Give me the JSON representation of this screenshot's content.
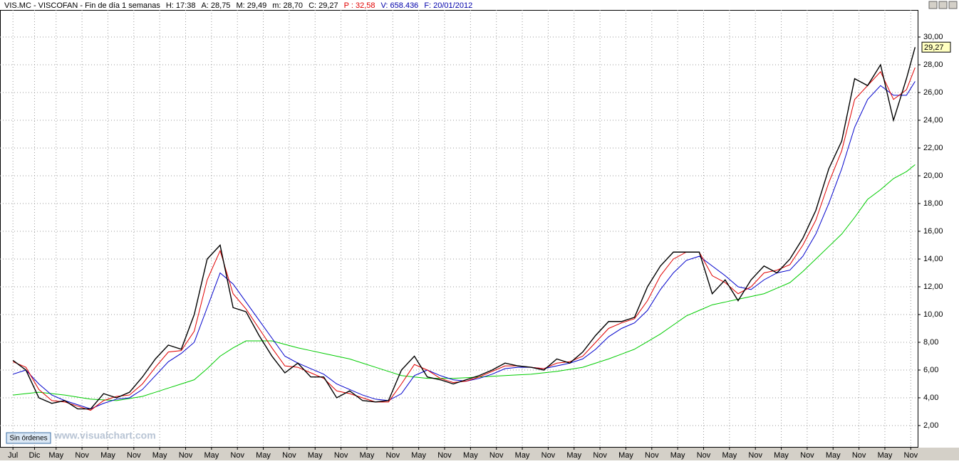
{
  "chart_data": {
    "type": "line",
    "header": [
      "VIS.MC - VISCOFAN - Fin de día 1 semanas",
      "H: 17:38",
      "A: 28,75",
      "M: 29,49",
      "m: 28,70",
      "C: 29,27",
      "P : 32,58",
      "V: 658.436",
      "F: 20/01/2012"
    ],
    "status_button": "Sin órdenes",
    "watermark": "www.visualchart.com",
    "x": [
      0,
      3,
      6,
      9,
      12,
      15,
      18,
      21,
      24,
      27,
      30,
      33,
      36,
      39,
      42,
      45,
      48,
      51,
      54,
      57,
      60,
      63,
      66,
      69,
      72,
      75,
      78,
      81,
      84,
      87,
      90,
      93,
      96,
      99,
      102,
      105,
      108,
      111,
      114,
      117,
      120,
      123,
      126,
      129,
      132,
      135,
      138,
      141,
      144,
      147,
      150,
      153,
      156,
      159,
      162,
      165,
      168,
      171,
      174,
      177,
      180,
      183,
      186,
      189,
      192,
      195,
      198,
      201,
      204,
      207,
      209
    ],
    "series": [
      {
        "color": "#000000",
        "values": [
          6.7,
          6.0,
          4.0,
          3.6,
          3.8,
          3.2,
          3.2,
          4.3,
          4.0,
          4.4,
          5.5,
          6.8,
          7.8,
          7.5,
          10,
          14,
          15,
          10.5,
          10.2,
          8.5,
          7.0,
          5.8,
          6.5,
          5.5,
          5.5,
          4.0,
          4.5,
          3.8,
          3.7,
          3.8,
          6.0,
          7.0,
          5.5,
          5.3,
          5.0,
          5.3,
          5.6,
          6.0,
          6.5,
          6.3,
          6.2,
          6.0,
          6.8,
          6.5,
          7.3,
          8.5,
          9.5,
          9.5,
          9.8,
          12.0,
          13.5,
          14.5,
          14.5,
          14.5,
          11.5,
          12.5,
          11.0,
          12.5,
          13.5,
          13.0,
          14.0,
          15.5,
          17.5,
          20.5,
          22.5,
          27.0,
          26.5,
          28.0,
          24.0,
          27.0,
          29.27
        ],
        "value_labels": [
          null,
          null,
          null,
          null,
          null,
          null,
          null,
          null,
          null,
          null,
          null,
          null,
          null,
          null,
          null,
          null,
          null,
          null,
          null,
          null,
          null,
          null,
          null,
          null,
          null,
          null,
          null,
          null,
          null,
          null,
          null,
          null,
          null,
          null,
          null,
          null,
          null,
          null,
          null,
          null,
          null,
          null,
          null,
          null,
          null,
          null,
          null,
          null,
          null,
          null,
          null,
          null,
          null,
          null,
          null,
          null,
          null,
          null,
          null,
          null,
          null,
          null,
          null,
          null,
          null,
          null,
          null,
          null,
          null,
          null,
          "29,27"
        ]
      },
      {
        "color": "#e00000",
        "values": [
          6.6,
          6.2,
          4.6,
          3.8,
          3.7,
          3.4,
          3.1,
          3.8,
          4.1,
          4.2,
          5.0,
          6.2,
          7.3,
          7.4,
          8.8,
          12.5,
          14.6,
          11.5,
          10.4,
          9.0,
          7.6,
          6.3,
          6.2,
          5.8,
          5.4,
          4.5,
          4.3,
          4.0,
          3.7,
          3.7,
          5.0,
          6.4,
          6.0,
          5.4,
          5.1,
          5.2,
          5.5,
          5.9,
          6.3,
          6.3,
          6.2,
          6.1,
          6.5,
          6.6,
          7.0,
          8.0,
          9.0,
          9.4,
          9.7,
          11.0,
          12.8,
          14.0,
          14.5,
          14.5,
          12.8,
          12.3,
          11.5,
          12.0,
          13.0,
          13.2,
          13.6,
          15.0,
          16.8,
          19.5,
          21.8,
          25.5,
          26.5,
          27.5,
          25.5,
          26.2,
          27.8
        ]
      },
      {
        "color": "#0000cc",
        "values": [
          5.7,
          6.0,
          5.0,
          4.2,
          3.8,
          3.5,
          3.2,
          3.6,
          3.9,
          4.0,
          4.6,
          5.6,
          6.6,
          7.2,
          8.0,
          10.5,
          13.0,
          12.2,
          10.9,
          9.6,
          8.3,
          7.0,
          6.5,
          6.1,
          5.7,
          5.0,
          4.6,
          4.2,
          3.9,
          3.8,
          4.3,
          5.6,
          6.0,
          5.6,
          5.3,
          5.2,
          5.4,
          5.7,
          6.1,
          6.2,
          6.2,
          6.1,
          6.3,
          6.5,
          6.8,
          7.5,
          8.4,
          9.0,
          9.4,
          10.3,
          11.8,
          13.0,
          13.9,
          14.2,
          13.5,
          12.8,
          12.0,
          11.8,
          12.5,
          13.0,
          13.2,
          14.2,
          15.8,
          18.0,
          20.5,
          23.5,
          25.5,
          26.5,
          25.8,
          25.8,
          26.8
        ]
      },
      {
        "color": "#00cc00",
        "values": [
          4.2,
          4.3,
          4.4,
          4.3,
          4.2,
          4.05,
          3.9,
          3.85,
          3.8,
          3.95,
          4.1,
          4.4,
          4.7,
          5.0,
          5.3,
          6.1,
          7.0,
          7.6,
          8.1,
          8.1,
          8.1,
          7.85,
          7.6,
          7.4,
          7.2,
          7.0,
          6.8,
          6.5,
          6.2,
          5.9,
          5.6,
          5.5,
          5.4,
          5.4,
          5.4,
          5.45,
          5.5,
          5.55,
          5.6,
          5.65,
          5.7,
          5.8,
          5.9,
          6.05,
          6.2,
          6.5,
          6.8,
          7.15,
          7.5,
          8.05,
          8.6,
          9.25,
          9.9,
          10.3,
          10.7,
          10.9,
          11.1,
          11.3,
          11.5,
          11.9,
          12.3,
          13.1,
          14.0,
          14.9,
          15.8,
          17.0,
          18.3,
          19.0,
          19.8,
          20.3,
          20.8
        ]
      }
    ],
    "xlim": [
      -3,
      209.6
    ],
    "xticks": [
      {
        "value": 0,
        "label": "Jul"
      },
      {
        "value": 5,
        "label": "Dic"
      },
      {
        "value": 10,
        "label": "May"
      },
      {
        "value": 16,
        "label": "Nov"
      },
      {
        "value": 22,
        "label": "May"
      },
      {
        "value": 28,
        "label": "Nov"
      },
      {
        "value": 34,
        "label": "May"
      },
      {
        "value": 40,
        "label": "Nov"
      },
      {
        "value": 46,
        "label": "May"
      },
      {
        "value": 52,
        "label": "Nov"
      },
      {
        "value": 58,
        "label": "May"
      },
      {
        "value": 64,
        "label": "Nov"
      },
      {
        "value": 70,
        "label": "May"
      },
      {
        "value": 76,
        "label": "Nov"
      },
      {
        "value": 82,
        "label": "May"
      },
      {
        "value": 88,
        "label": "Nov"
      },
      {
        "value": 94,
        "label": "May"
      },
      {
        "value": 100,
        "label": "Nov"
      },
      {
        "value": 106,
        "label": "May"
      },
      {
        "value": 112,
        "label": "Nov"
      },
      {
        "value": 118,
        "label": "May"
      },
      {
        "value": 124,
        "label": "Nov"
      },
      {
        "value": 130,
        "label": "May"
      },
      {
        "value": 136,
        "label": "Nov"
      },
      {
        "value": 142,
        "label": "May"
      },
      {
        "value": 148,
        "label": "Nov"
      },
      {
        "value": 154,
        "label": "May"
      },
      {
        "value": 160,
        "label": "Nov"
      },
      {
        "value": 166,
        "label": "May"
      },
      {
        "value": 172,
        "label": "Nov"
      },
      {
        "value": 178,
        "label": "May"
      },
      {
        "value": 184,
        "label": "Nov"
      },
      {
        "value": 190,
        "label": "May"
      },
      {
        "value": 196,
        "label": "Nov"
      },
      {
        "value": 202,
        "label": "May"
      },
      {
        "value": 208,
        "label": "Nov"
      }
    ],
    "ylim": [
      0.46,
      31.95
    ],
    "yticks": [
      {
        "value": 2,
        "label": "2,00"
      },
      {
        "value": 4,
        "label": "4,00"
      },
      {
        "value": 6,
        "label": "6,00"
      },
      {
        "value": 8,
        "label": "8,00"
      },
      {
        "value": 10,
        "label": "10,00"
      },
      {
        "value": 12,
        "label": "12,00"
      },
      {
        "value": 14,
        "label": "14,00"
      },
      {
        "value": 16,
        "label": "16,00"
      },
      {
        "value": 18,
        "label": "18,00"
      },
      {
        "value": 20,
        "label": "20,00"
      },
      {
        "value": 22,
        "label": "22,00"
      },
      {
        "value": 24,
        "label": "24,00"
      },
      {
        "value": 26,
        "label": "26,00"
      },
      {
        "value": 28,
        "label": "28,00"
      },
      {
        "value": 30,
        "label": "30,00"
      }
    ],
    "grid": true
  }
}
